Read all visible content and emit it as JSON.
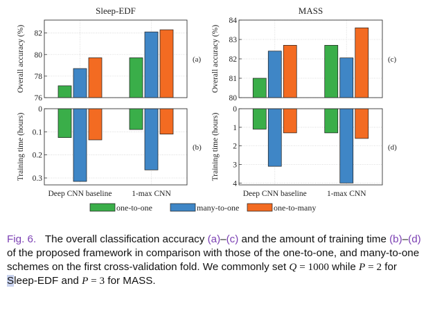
{
  "colors": {
    "one_to_one": "#3aae49",
    "many_to_one": "#3f86c6",
    "one_to_many": "#f36b22",
    "caption_link": "#7b3fb3"
  },
  "chart_data": [
    {
      "id": "a",
      "type": "bar",
      "title": "Sleep-EDF",
      "panel_label": "(a)",
      "ylabel": "Overall accuracy (%)",
      "ylim": [
        76,
        83.2
      ],
      "yticks": [
        "76",
        "78",
        "80",
        "82"
      ],
      "categories": [
        "Deep CNN baseline",
        "1-max CNN"
      ],
      "series": [
        {
          "name": "one-to-one",
          "values": [
            77.1,
            79.7
          ]
        },
        {
          "name": "many-to-one",
          "values": [
            78.7,
            82.1
          ]
        },
        {
          "name": "one-to-many",
          "values": [
            79.7,
            82.3
          ]
        }
      ],
      "grid": true,
      "xticklabels_shown": false
    },
    {
      "id": "b",
      "type": "bar",
      "panel_label": "(b)",
      "ylabel": "Training time (hours)",
      "ylim": [
        0,
        0.33
      ],
      "inverted_y": true,
      "yticks": [
        "0",
        "0.1",
        "0.2",
        "0.3"
      ],
      "categories": [
        "Deep CNN baseline",
        "1-max CNN"
      ],
      "series": [
        {
          "name": "one-to-one",
          "values": [
            0.125,
            0.09
          ]
        },
        {
          "name": "many-to-one",
          "values": [
            0.315,
            0.265
          ]
        },
        {
          "name": "one-to-many",
          "values": [
            0.135,
            0.11
          ]
        }
      ],
      "grid": true,
      "xticklabels_shown": true
    },
    {
      "id": "c",
      "type": "bar",
      "title": "MASS",
      "panel_label": "(c)",
      "ylabel": "Overall accuracy (%)",
      "ylim": [
        80,
        84
      ],
      "yticks": [
        "80",
        "81",
        "82",
        "83",
        "84"
      ],
      "categories": [
        "Deep CNN baseline",
        "1-max CNN"
      ],
      "series": [
        {
          "name": "one-to-one",
          "values": [
            81.0,
            82.7
          ]
        },
        {
          "name": "many-to-one",
          "values": [
            82.4,
            82.05
          ]
        },
        {
          "name": "one-to-many",
          "values": [
            82.7,
            83.6
          ]
        }
      ],
      "grid": true,
      "xticklabels_shown": false
    },
    {
      "id": "d",
      "type": "bar",
      "panel_label": "(d)",
      "ylabel": "Training time (hours)",
      "ylim": [
        0,
        4.1
      ],
      "inverted_y": true,
      "yticks": [
        "0",
        "1",
        "2",
        "3",
        "4"
      ],
      "categories": [
        "Deep CNN baseline",
        "1-max CNN"
      ],
      "series": [
        {
          "name": "one-to-one",
          "values": [
            1.1,
            1.3
          ]
        },
        {
          "name": "many-to-one",
          "values": [
            3.1,
            4.0
          ]
        },
        {
          "name": "one-to-many",
          "values": [
            1.3,
            1.6
          ]
        }
      ],
      "grid": true,
      "xticklabels_shown": true
    }
  ],
  "legend": [
    "one-to-one",
    "many-to-one",
    "one-to-many"
  ],
  "caption": {
    "label": "Fig. 6.",
    "t1": "The overall classification accuracy ",
    "r1": "(a)",
    "d1": "–",
    "r2": "(c)",
    "t2": " and the amount of training time ",
    "r3": "(b)",
    "d2": "–",
    "r4": "(d)",
    "t3": " of the proposed framework in comparison with those of the one-to-one, and many-to-one schemes on the first cross-validation fold. We commonly set ",
    "q_var": "Q",
    "q_eq": " = 1000",
    "t4": " while ",
    "p_var1": "P",
    "p_eq1": " = 2",
    "t5": " for ",
    "s_letter": "S",
    "t6": "leep-EDF and ",
    "p_var2": "P",
    "p_eq2": " = 3",
    "t7": " for MASS."
  }
}
